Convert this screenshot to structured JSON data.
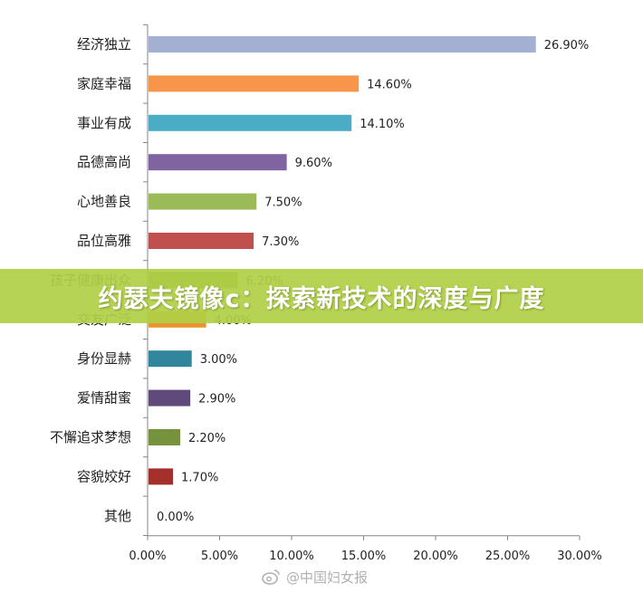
{
  "chart_data": {
    "type": "bar",
    "orientation": "horizontal",
    "categories": [
      "经济独立",
      "家庭幸福",
      "事业有成",
      "品德高尚",
      "心地善良",
      "品位高雅",
      "孩子健康出众",
      "交友广泛",
      "身份显赫",
      "爱情甜蜜",
      "不懈追求梦想",
      "容貌姣好",
      "其他"
    ],
    "values": [
      26.9,
      14.6,
      14.1,
      9.6,
      7.5,
      7.3,
      6.2,
      4.0,
      3.0,
      2.9,
      2.2,
      1.7,
      0.0
    ],
    "value_labels": [
      "26.90%",
      "14.60%",
      "14.10%",
      "9.60%",
      "7.50%",
      "7.30%",
      "6.20%",
      "4.00%",
      "3.00%",
      "2.90%",
      "2.20%",
      "1.70%",
      "0.00%"
    ],
    "colors": [
      "#a3b0d2",
      "#f7964a",
      "#4bacc6",
      "#8064a2",
      "#9bbb59",
      "#c0504d",
      "#77a03c",
      "#e9942e",
      "#31859c",
      "#604a7b",
      "#76923c",
      "#a5302b",
      "#7f7f7f"
    ],
    "xlim": [
      0,
      30
    ],
    "xticks": [
      "0.00%",
      "5.00%",
      "10.00%",
      "15.00%",
      "20.00%",
      "25.00%",
      "30.00%"
    ],
    "grid": false,
    "legend": "none"
  },
  "overlay": {
    "banner_text": "约瑟夫镜像c：探索新技术的深度与广度",
    "watermark_text": "@中国妇女报",
    "watermark_icon": "weibo-icon"
  }
}
